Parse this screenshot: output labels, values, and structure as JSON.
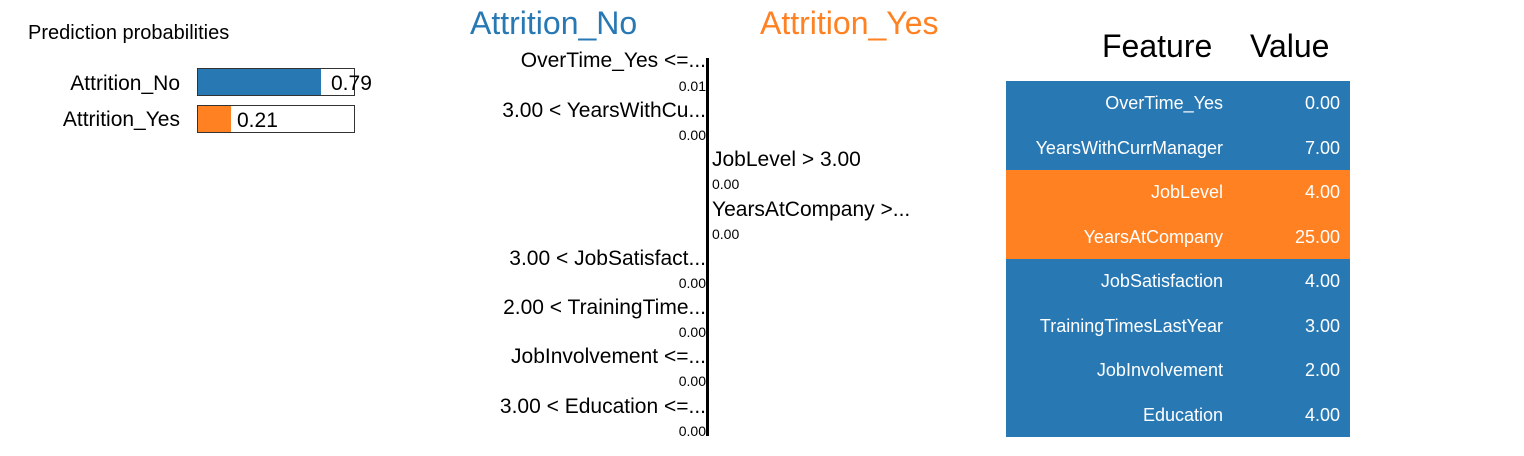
{
  "colors": {
    "no": "#2878b4",
    "yes": "#ff8122",
    "axis": "#000000"
  },
  "prediction": {
    "title": "Prediction probabilities",
    "items": [
      {
        "label": "Attrition_No",
        "value": 0.79,
        "value_text": "0.79",
        "color": "#2878b4"
      },
      {
        "label": "Attrition_Yes",
        "value": 0.21,
        "value_text": "0.21",
        "color": "#ff8122"
      }
    ]
  },
  "explanation": {
    "negative_class": "Attrition_No",
    "positive_class": "Attrition_Yes",
    "features": [
      {
        "label": "OverTime_Yes <=...",
        "weight": "0.01",
        "side": "no"
      },
      {
        "label": "3.00 < YearsWithCu...",
        "weight": "0.00",
        "side": "no"
      },
      {
        "label": "JobLevel > 3.00",
        "weight": "0.00",
        "side": "yes"
      },
      {
        "label": "YearsAtCompany >...",
        "weight": "0.00",
        "side": "yes"
      },
      {
        "label": "3.00 < JobSatisfact...",
        "weight": "0.00",
        "side": "no"
      },
      {
        "label": "2.00 < TrainingTime...",
        "weight": "0.00",
        "side": "no"
      },
      {
        "label": "JobInvolvement <=...",
        "weight": "0.00",
        "side": "no"
      },
      {
        "label": "3.00 < Education <=...",
        "weight": "0.00",
        "side": "no"
      }
    ]
  },
  "table": {
    "feature_header": "Feature",
    "value_header": "Value",
    "rows": [
      {
        "feature": "OverTime_Yes",
        "value": "0.00",
        "side": "no"
      },
      {
        "feature": "YearsWithCurrManager",
        "value": "7.00",
        "side": "no"
      },
      {
        "feature": "JobLevel",
        "value": "4.00",
        "side": "yes"
      },
      {
        "feature": "YearsAtCompany",
        "value": "25.00",
        "side": "yes"
      },
      {
        "feature": "JobSatisfaction",
        "value": "4.00",
        "side": "no"
      },
      {
        "feature": "TrainingTimesLastYear",
        "value": "3.00",
        "side": "no"
      },
      {
        "feature": "JobInvolvement",
        "value": "2.00",
        "side": "no"
      },
      {
        "feature": "Education",
        "value": "4.00",
        "side": "no"
      }
    ]
  },
  "chart_data": {
    "type": "bar",
    "title": "Prediction probabilities",
    "categories": [
      "Attrition_No",
      "Attrition_Yes"
    ],
    "values": [
      0.79,
      0.21
    ],
    "xlabel": "",
    "ylabel": "",
    "xlim": [
      0,
      1
    ]
  }
}
